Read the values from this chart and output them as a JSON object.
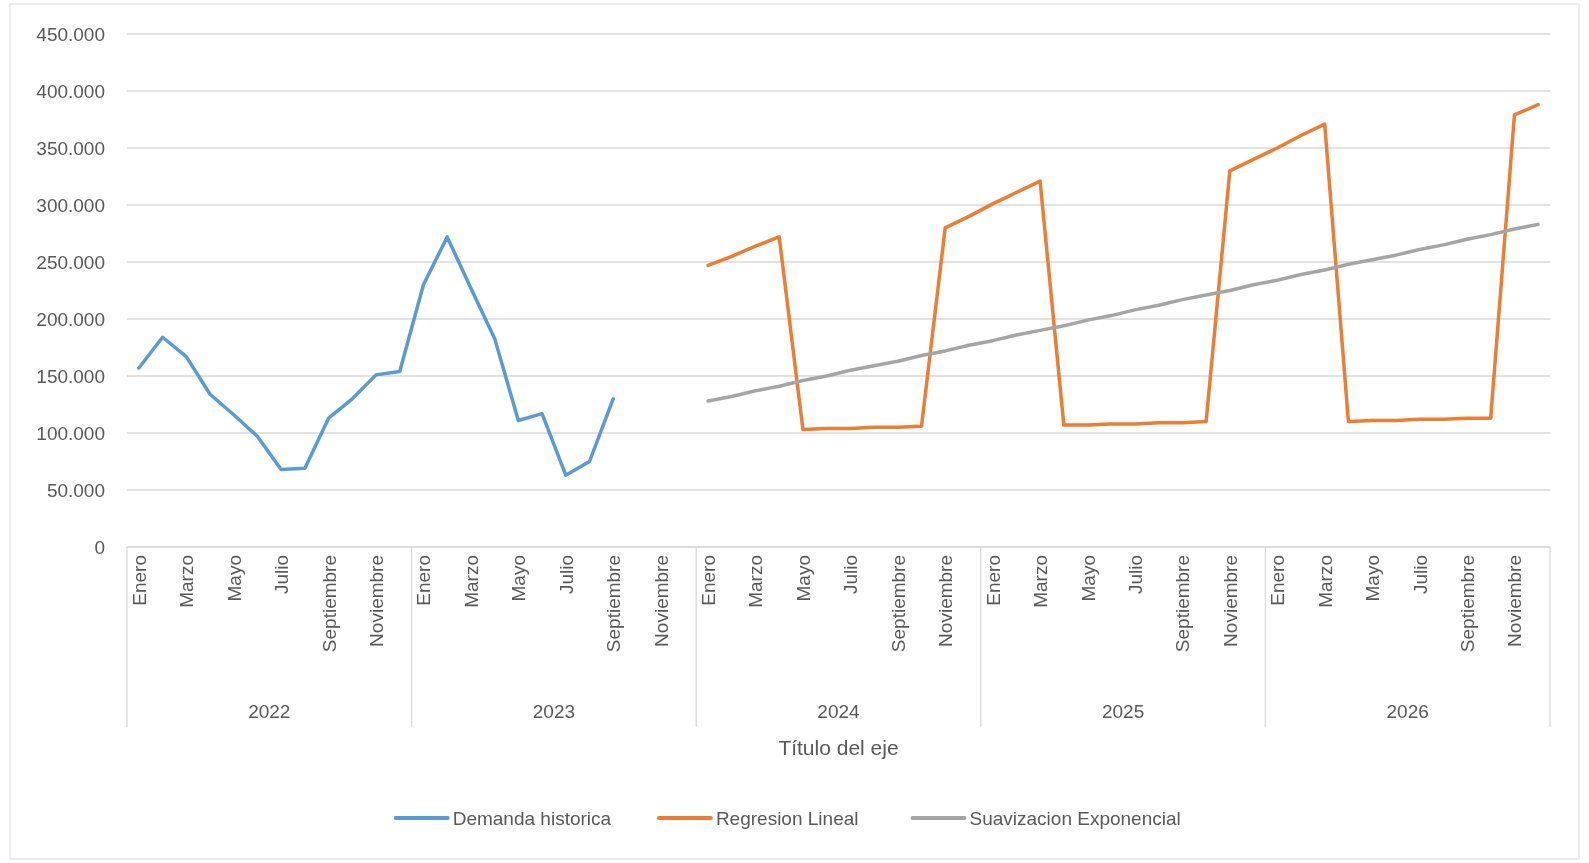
{
  "chart_data": {
    "type": "line",
    "categories": [
      "Enero",
      null,
      "Marzo",
      null,
      "Mayo",
      null,
      "Julio",
      null,
      "Septiembre",
      null,
      "Noviembre",
      null,
      "Enero",
      null,
      "Marzo",
      null,
      "Mayo",
      null,
      "Julio",
      null,
      "Septiembre",
      null,
      "Noviembre",
      null,
      "Enero",
      null,
      "Marzo",
      null,
      "Mayo",
      null,
      "Julio",
      null,
      "Septiembre",
      null,
      "Noviembre",
      null,
      "Enero",
      null,
      "Marzo",
      null,
      "Mayo",
      null,
      "Julio",
      null,
      "Septiembre",
      null,
      "Noviembre",
      null,
      "Enero",
      null,
      "Marzo",
      null,
      "Mayo",
      null,
      "Julio",
      null,
      "Septiembre",
      null,
      "Noviembre",
      null
    ],
    "annotations": [
      "2022",
      "2023",
      "2024",
      "2025",
      "2026"
    ],
    "xlabel": "Título del eje",
    "series": [
      {
        "name": "Demanda historica",
        "color": "#5b9bd5",
        "values": [
          157000,
          184000,
          167000,
          134000,
          116000,
          97000,
          68000,
          69000,
          113000,
          130000,
          151000,
          154000,
          230000,
          272000,
          227000,
          183000,
          111000,
          117000,
          63000,
          75000,
          130000,
          null,
          null,
          null,
          null,
          null,
          null,
          null,
          null,
          null,
          null,
          null,
          null,
          null,
          null,
          null,
          null,
          null,
          null,
          null,
          null,
          null,
          null,
          null,
          null,
          null,
          null,
          null,
          null,
          null,
          null,
          null,
          null,
          null,
          null,
          null,
          null,
          null,
          null,
          null
        ]
      },
      {
        "name": "Regresion Lineal",
        "color": "#ed7d31",
        "values": [
          null,
          null,
          null,
          null,
          null,
          null,
          null,
          null,
          null,
          null,
          null,
          null,
          null,
          null,
          null,
          null,
          null,
          null,
          null,
          null,
          null,
          null,
          null,
          null,
          247000,
          255000,
          264000,
          272000,
          103000,
          104000,
          104000,
          105000,
          105000,
          106000,
          280000,
          290000,
          301000,
          311000,
          321000,
          107000,
          107000,
          108000,
          108000,
          109000,
          109000,
          110000,
          330000,
          340000,
          350000,
          361000,
          371000,
          110000,
          111000,
          111000,
          112000,
          112000,
          113000,
          113000,
          379000,
          388000
        ]
      },
      {
        "name": "Suavizacion Exponencial",
        "color": "#a5a5a5",
        "values": [
          null,
          null,
          null,
          null,
          null,
          null,
          null,
          null,
          null,
          null,
          null,
          null,
          null,
          null,
          null,
          null,
          null,
          null,
          null,
          null,
          null,
          null,
          null,
          null,
          128000,
          132000,
          137000,
          141000,
          146000,
          150000,
          155000,
          159000,
          163000,
          168000,
          172000,
          177000,
          181000,
          186000,
          190000,
          194000,
          199000,
          203000,
          208000,
          212000,
          217000,
          221000,
          225000,
          230000,
          234000,
          239000,
          243000,
          248000,
          252000,
          256000,
          261000,
          265000,
          270000,
          274000,
          279000,
          283000
        ]
      }
    ],
    "ylim": [
      0,
      450000
    ],
    "yticks": [
      0,
      {
        "value": 50000,
        "label": "50.000"
      },
      {
        "value": 100000,
        "label": "100.000"
      },
      {
        "value": 150000,
        "label": "150.000"
      },
      {
        "value": 200000,
        "label": "200.000"
      },
      {
        "value": 250000,
        "label": "250.000"
      },
      {
        "value": 300000,
        "label": "300.000"
      },
      {
        "value": 350000,
        "label": "350.000"
      },
      {
        "value": 400000,
        "label": "400.000"
      },
      {
        "value": 450000,
        "label": "450.000"
      }
    ],
    "grid": "y",
    "legend": "bottom",
    "marker": "none",
    "line_style": "solid"
  }
}
